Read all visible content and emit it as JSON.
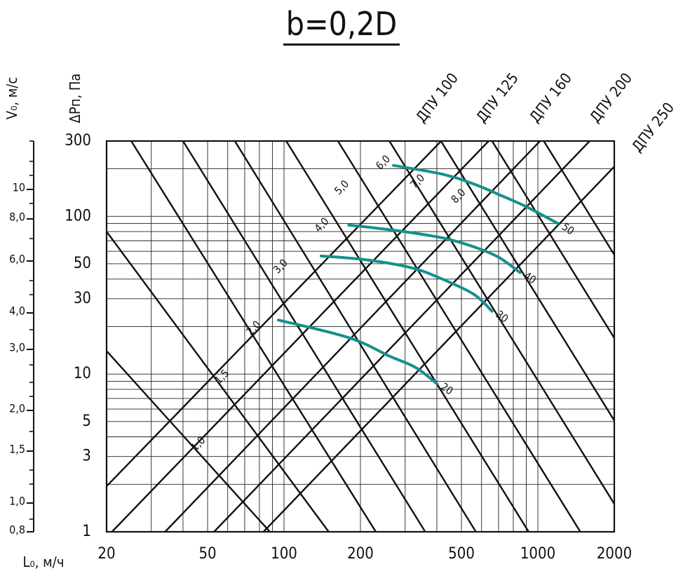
{
  "title": "b=0,2D",
  "chart_data": {
    "type": "line",
    "x_axis": {
      "label": "L₀, м/ч",
      "scale": "log",
      "range": [
        20,
        2000
      ],
      "ticks": [
        20,
        50,
        100,
        200,
        500,
        1000,
        2000
      ],
      "tick_labels": [
        "20",
        "50",
        "100",
        "200",
        "500",
        "1000",
        "2000"
      ]
    },
    "y_axis_pressure": {
      "label": "ΔPп, Па",
      "scale": "log",
      "range": [
        1,
        300
      ],
      "ticks": [
        1,
        3,
        5,
        10,
        30,
        50,
        100,
        300
      ],
      "tick_labels": [
        "1",
        "3",
        "5",
        "10",
        "30",
        "50",
        "100",
        "300"
      ]
    },
    "y_axis_velocity": {
      "label": "V₀, м/с",
      "scale": "log",
      "ticks": [
        0.8,
        1.0,
        1.5,
        2.0,
        3.0,
        4.0,
        6.0,
        8.0,
        10
      ],
      "tick_labels": [
        "0,8",
        "1,0",
        "1,5",
        "2,0",
        "3,0",
        "4,0",
        "6,0",
        "8,0",
        "10"
      ]
    },
    "grid": true,
    "size_lines": [
      {
        "name": "ДПУ 100",
        "points": [
          [
            13.4,
            1
          ],
          [
            416,
            300
          ]
        ]
      },
      {
        "name": "ДПУ 125",
        "points": [
          [
            21,
            1
          ],
          [
            640,
            300
          ]
        ]
      },
      {
        "name": "ДПУ 160",
        "points": [
          [
            34,
            1
          ],
          [
            1020,
            300
          ]
        ]
      },
      {
        "name": "ДПУ 200",
        "points": [
          [
            53,
            1
          ],
          [
            1600,
            300
          ]
        ]
      },
      {
        "name": "ДПУ 250",
        "points": [
          [
            83,
            1
          ],
          [
            2500,
            300
          ]
        ]
      }
    ],
    "velocity_lines": [
      {
        "name": "1,0",
        "points": [
          [
            20,
            14
          ],
          [
            88,
            1
          ]
        ]
      },
      {
        "name": "1,5",
        "points": [
          [
            20,
            80
          ],
          [
            150,
            1
          ]
        ]
      },
      {
        "name": "2,0",
        "points": [
          [
            25,
            300
          ],
          [
            230,
            1
          ]
        ]
      },
      {
        "name": "3,0",
        "points": [
          [
            40,
            300
          ],
          [
            360,
            1
          ]
        ]
      },
      {
        "name": "4,0",
        "points": [
          [
            64,
            300
          ],
          [
            570,
            1
          ]
        ]
      },
      {
        "name": "5,0",
        "points": [
          [
            102,
            300
          ],
          [
            920,
            1
          ]
        ]
      },
      {
        "name": "6,0",
        "points": [
          [
            163,
            300
          ],
          [
            1470,
            1
          ]
        ]
      },
      {
        "name": "7,0",
        "points": [
          [
            260,
            300
          ],
          [
            2340,
            1
          ]
        ]
      },
      {
        "name": "8,0",
        "points": [
          [
            415,
            300
          ],
          [
            3740,
            1
          ]
        ]
      },
      {
        "name": "",
        "points": [
          [
            660,
            300
          ],
          [
            5950,
            1
          ]
        ]
      },
      {
        "name": "",
        "points": [
          [
            1055,
            300
          ],
          [
            9500,
            1
          ]
        ]
      }
    ],
    "velocity_labels": [
      {
        "text": "1,0",
        "at": [
          46,
          3.6
        ]
      },
      {
        "text": "1,5",
        "at": [
          57,
          9.6
        ]
      },
      {
        "text": "2,0",
        "at": [
          76,
          19.5
        ]
      },
      {
        "text": "3,0",
        "at": [
          97,
          48
        ]
      },
      {
        "text": "4,0",
        "at": [
          141,
          88
        ]
      },
      {
        "text": "5,0",
        "at": [
          169,
          152
        ]
      },
      {
        "text": "6,0",
        "at": [
          246,
          219
        ]
      },
      {
        "text": "7,0",
        "at": [
          336,
          166
        ]
      },
      {
        "text": "8,0",
        "at": [
          487,
          134
        ]
      }
    ],
    "series": [
      {
        "name": "20",
        "color": "#16908c",
        "x": [
          95,
          180,
          260,
          330,
          400
        ],
        "y": [
          22,
          17,
          13,
          11,
          8.7
        ]
      },
      {
        "name": "30",
        "color": "#16908c",
        "x": [
          140,
          210,
          320,
          420,
          560,
          660
        ],
        "y": [
          56,
          53,
          47,
          40,
          32,
          25
        ]
      },
      {
        "name": "40",
        "color": "#16908c",
        "x": [
          180,
          280,
          420,
          560,
          700,
          850
        ],
        "y": [
          88,
          81,
          73,
          64,
          55,
          44
        ]
      },
      {
        "name": "50",
        "color": "#16908c",
        "x": [
          270,
          420,
          560,
          720,
          900,
          1200
        ],
        "y": [
          210,
          185,
          160,
          135,
          115,
          90
        ]
      }
    ]
  }
}
